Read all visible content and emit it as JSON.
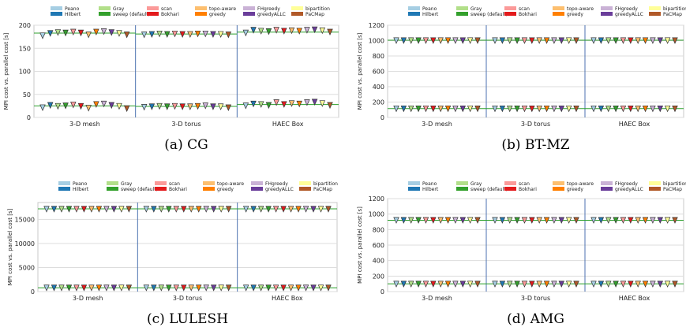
{
  "legend": [
    {
      "name": "Peano",
      "color": "#a6cee3"
    },
    {
      "name": "Hilbert",
      "color": "#1f78b4"
    },
    {
      "name": "Gray",
      "color": "#b2df8a"
    },
    {
      "name": "sweep (default)",
      "color": "#33a02c"
    },
    {
      "name": "scan",
      "color": "#fb9a99"
    },
    {
      "name": "Bokhari",
      "color": "#e31a1c"
    },
    {
      "name": "topo-aware",
      "color": "#fdbf6f"
    },
    {
      "name": "greedy",
      "color": "#ff7f00"
    },
    {
      "name": "FHgreedy",
      "color": "#cab2d6"
    },
    {
      "name": "greedyALLC",
      "color": "#6a3d9a"
    },
    {
      "name": "bipartition",
      "color": "#ffff99"
    },
    {
      "name": "PaCMap",
      "color": "#b15928"
    }
  ],
  "chart_data": [
    {
      "type": "scatter",
      "caption": "(a)  CG",
      "ylabel": "MPI cost vs. parallel cost [s]",
      "categories": [
        "3-D mesh",
        "3-D torus",
        "HAEC Box"
      ],
      "ylim": [
        0,
        200
      ],
      "yticks": [
        0,
        50,
        100,
        150,
        200
      ],
      "grid": true,
      "legend_position": "top",
      "series": [
        {
          "group": "parallel",
          "reference": [
            183,
            181,
            185
          ],
          "values": [
            [
              178,
              183,
              185,
              184,
              186,
              184,
              180,
              186,
              187,
              185,
              183,
              180
            ],
            [
              180,
              181,
              182,
              181,
              182,
              181,
              181,
              182,
              182,
              181,
              181,
              180
            ],
            [
              184,
              190,
              188,
              187,
              190,
              188,
              189,
              188,
              190,
              191,
              189,
              186
            ]
          ]
        },
        {
          "group": "mpi",
          "reference": [
            25,
            24,
            28
          ],
          "values": [
            [
              22,
              27,
              25,
              26,
              28,
              25,
              21,
              29,
              30,
              27,
              25,
              20
            ],
            [
              23,
              24,
              25,
              24,
              25,
              24,
              24,
              25,
              26,
              24,
              24,
              22
            ],
            [
              26,
              30,
              29,
              27,
              33,
              29,
              31,
              30,
              33,
              34,
              31,
              27
            ]
          ]
        }
      ]
    },
    {
      "type": "scatter",
      "caption": "(b)  BT-MZ",
      "ylabel": "MPI cost vs. parallel cost [s]",
      "categories": [
        "3-D mesh",
        "3-D torus",
        "HAEC Box"
      ],
      "ylim": [
        0,
        1200
      ],
      "yticks": [
        0,
        200,
        400,
        600,
        800,
        1000,
        1200
      ],
      "grid": true,
      "legend_position": "top",
      "series": [
        {
          "group": "parallel",
          "reference": [
            1005,
            1005,
            1005
          ],
          "values": [
            [
              1005,
              1005,
              1005,
              1005,
              1005,
              1005,
              1005,
              1005,
              1005,
              1005,
              1005,
              1005
            ],
            [
              1005,
              1005,
              1005,
              1005,
              1005,
              1005,
              1005,
              1005,
              1005,
              1005,
              1005,
              1005
            ],
            [
              1005,
              1005,
              1005,
              1005,
              1005,
              1005,
              1005,
              1005,
              1005,
              1005,
              1005,
              1005
            ]
          ]
        },
        {
          "group": "mpi",
          "reference": [
            115,
            115,
            115
          ],
          "values": [
            [
              118,
              118,
              118,
              118,
              118,
              118,
              118,
              118,
              118,
              118,
              118,
              118
            ],
            [
              118,
              118,
              118,
              118,
              118,
              118,
              118,
              118,
              118,
              118,
              118,
              118
            ],
            [
              118,
              118,
              118,
              118,
              118,
              118,
              118,
              118,
              118,
              118,
              118,
              118
            ]
          ]
        }
      ]
    },
    {
      "type": "scatter",
      "caption": "(c)  LULESH",
      "ylabel": "MPI cost vs. parallel cost [s]",
      "categories": [
        "3-D mesh",
        "3-D torus",
        "HAEC Box"
      ],
      "ylim": [
        0,
        18500
      ],
      "yticks": [
        0,
        5000,
        10000,
        15000
      ],
      "grid": true,
      "legend_position": "top",
      "series": [
        {
          "group": "parallel",
          "reference": [
            17200,
            17200,
            17200
          ],
          "values": [
            [
              17200,
              17200,
              17200,
              17200,
              17200,
              17200,
              17200,
              17200,
              17200,
              17200,
              17200,
              17200
            ],
            [
              17200,
              17200,
              17200,
              17200,
              17200,
              17200,
              17200,
              17200,
              17200,
              17200,
              17200,
              17200
            ],
            [
              17200,
              17200,
              17200,
              17200,
              17200,
              17200,
              17200,
              17200,
              17200,
              17200,
              17200,
              17200
            ]
          ]
        },
        {
          "group": "mpi",
          "reference": [
            800,
            800,
            800
          ],
          "values": [
            [
              850,
              850,
              850,
              850,
              850,
              850,
              850,
              850,
              850,
              850,
              850,
              850
            ],
            [
              850,
              850,
              850,
              850,
              850,
              850,
              850,
              850,
              850,
              850,
              850,
              850
            ],
            [
              850,
              850,
              850,
              850,
              850,
              850,
              850,
              850,
              850,
              850,
              850,
              850
            ]
          ]
        }
      ]
    },
    {
      "type": "scatter",
      "caption": "(d)  AMG",
      "ylabel": "MPI cost vs. parallel cost [s]",
      "categories": [
        "3-D mesh",
        "3-D torus",
        "HAEC Box"
      ],
      "ylim": [
        0,
        1200
      ],
      "yticks": [
        0,
        200,
        400,
        600,
        800,
        1000,
        1200
      ],
      "grid": true,
      "legend_position": "top",
      "series": [
        {
          "group": "parallel",
          "reference": [
            920,
            920,
            920
          ],
          "values": [
            [
              925,
              925,
              925,
              925,
              925,
              925,
              925,
              925,
              925,
              925,
              925,
              925
            ],
            [
              925,
              925,
              925,
              925,
              925,
              925,
              925,
              925,
              925,
              925,
              925,
              925
            ],
            [
              925,
              925,
              925,
              925,
              925,
              925,
              925,
              925,
              925,
              925,
              925,
              925
            ]
          ]
        },
        {
          "group": "mpi",
          "reference": [
            100,
            100,
            100
          ],
          "values": [
            [
              102,
              102,
              102,
              102,
              102,
              102,
              102,
              102,
              102,
              102,
              102,
              102
            ],
            [
              102,
              102,
              102,
              102,
              102,
              102,
              102,
              102,
              102,
              102,
              102,
              102
            ],
            [
              102,
              102,
              102,
              102,
              102,
              102,
              102,
              102,
              102,
              102,
              102,
              102
            ]
          ]
        }
      ]
    }
  ]
}
